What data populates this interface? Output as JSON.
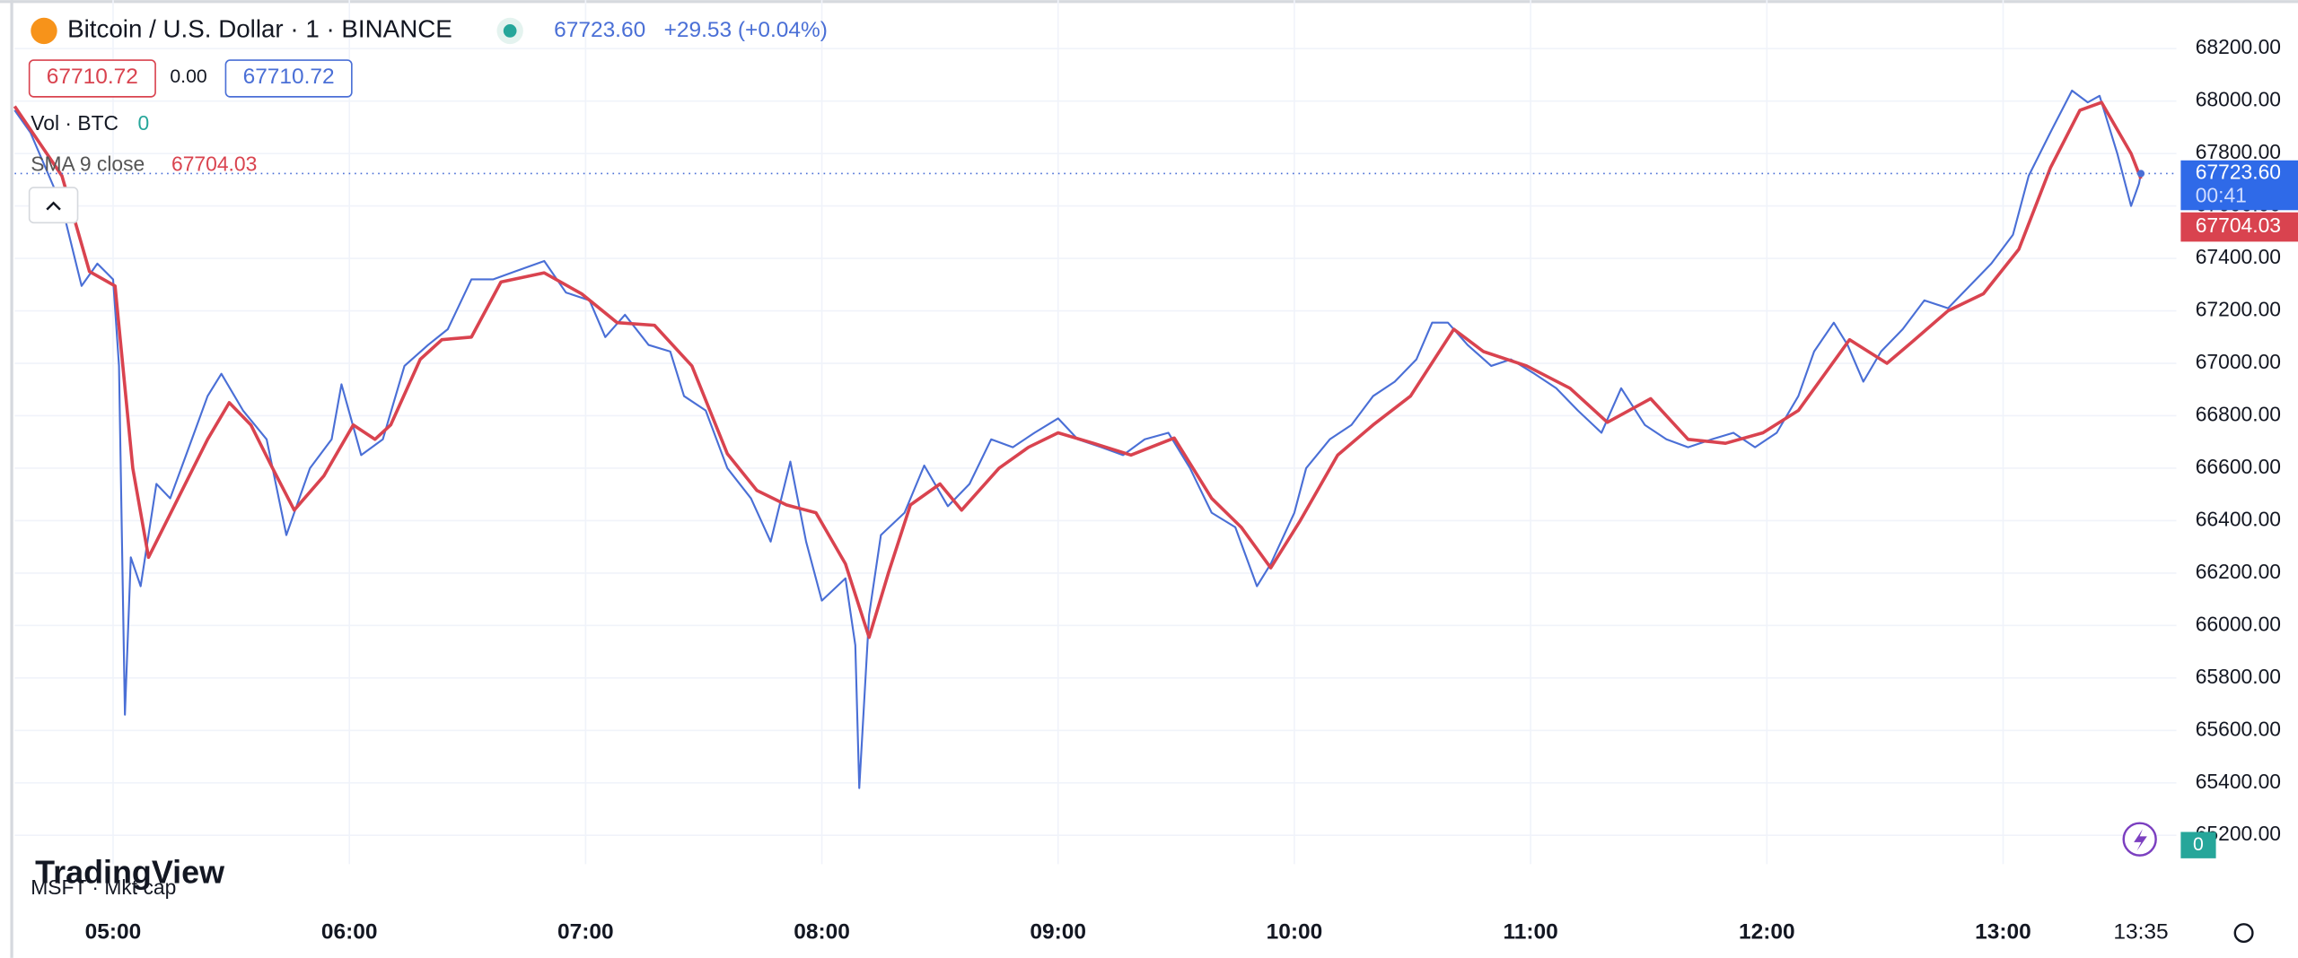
{
  "header": {
    "symbol": "Bitcoin / U.S. Dollar · 1 · BINANCE",
    "last": "67723.60",
    "change": "+29.53 (+0.04%)",
    "bid": "67710.72",
    "spread": "0.00",
    "ask": "67710.72"
  },
  "indicators": {
    "volume_label": "Vol · BTC",
    "volume_value": "0",
    "volume_axis_value": "0",
    "overlay_label": "MSFT · Mkt cap",
    "watermark": "TradingView"
  },
  "chart_data": {
    "type": "line",
    "grid": true,
    "xlim": [
      275,
      824
    ],
    "xticks": [
      {
        "value": 300,
        "label": "05:00"
      },
      {
        "value": 360,
        "label": "06:00"
      },
      {
        "value": 420,
        "label": "07:00"
      },
      {
        "value": 480,
        "label": "08:00"
      },
      {
        "value": 540,
        "label": "09:00"
      },
      {
        "value": 600,
        "label": "10:00"
      },
      {
        "value": 660,
        "label": "11:00"
      },
      {
        "value": 720,
        "label": "12:00"
      },
      {
        "value": 780,
        "label": "13:00"
      },
      {
        "value": 815,
        "label": "13:35"
      }
    ],
    "ylim": [
      65090,
      68385
    ],
    "yticks": [
      {
        "value": 65200,
        "label": "65200.00"
      },
      {
        "value": 65400,
        "label": "65400.00"
      },
      {
        "value": 65600,
        "label": "65600.00"
      },
      {
        "value": 65800,
        "label": "65800.00"
      },
      {
        "value": 66000,
        "label": "66000.00"
      },
      {
        "value": 66200,
        "label": "66200.00"
      },
      {
        "value": 66400,
        "label": "66400.00"
      },
      {
        "value": 66600,
        "label": "66600.00"
      },
      {
        "value": 66800,
        "label": "66800.00"
      },
      {
        "value": 67000,
        "label": "67000.00"
      },
      {
        "value": 67200,
        "label": "67200.00"
      },
      {
        "value": 67400,
        "label": "67400.00"
      },
      {
        "value": 67600,
        "label": "67600.00"
      },
      {
        "value": 67800,
        "label": "67800.00"
      },
      {
        "value": 68000,
        "label": "68000.00"
      },
      {
        "value": 68200,
        "label": "68200.00"
      }
    ],
    "last_price": {
      "value": 67723.6,
      "label": "67723.60"
    },
    "countdown": "00:41",
    "sma_last": {
      "value": 67704.03,
      "label": "67704.03"
    },
    "series": [
      {
        "color": "#4a6fd6",
        "x": [
          275,
          279,
          287,
          292,
          296,
          300,
          301.5,
          303,
          304.5,
          307,
          311,
          314.5,
          320,
          324,
          327.5,
          333,
          339,
          344,
          350,
          355.5,
          358,
          363,
          368.5,
          374,
          380,
          385,
          391,
          396.5,
          402,
          409.5,
          415,
          421,
          425,
          430,
          436,
          441.5,
          445,
          450.5,
          456,
          462,
          467,
          472,
          476,
          480,
          486,
          488.5,
          489.5,
          492,
          495,
          501,
          506,
          512,
          517.5,
          523,
          528.5,
          534,
          540,
          545,
          551,
          556.5,
          562,
          568,
          573.5,
          579,
          585,
          590.5,
          594,
          600,
          603,
          609,
          614.5,
          620,
          625.5,
          631,
          635,
          639,
          644,
          650,
          655,
          661,
          666.5,
          672,
          678,
          683,
          689,
          694.5,
          700,
          706,
          711.5,
          717,
          722.5,
          728,
          732,
          737,
          740.5,
          744.5,
          749,
          754.5,
          760,
          766,
          771.5,
          777,
          782.5,
          786.5,
          792,
          797.5,
          801.5,
          804.5,
          809,
          812.5,
          814.5,
          815
        ],
        "values": [
          67965,
          67880,
          67600,
          67295,
          67380,
          67320,
          66990,
          65660,
          66260,
          66150,
          66540,
          66485,
          66710,
          66875,
          66960,
          66820,
          66710,
          66345,
          66600,
          66710,
          66920,
          66650,
          66710,
          66990,
          67070,
          67130,
          67320,
          67320,
          67350,
          67390,
          67270,
          67240,
          67100,
          67185,
          67070,
          67045,
          66875,
          66820,
          66600,
          66485,
          66320,
          66625,
          66320,
          66095,
          66180,
          65925,
          65380,
          66040,
          66345,
          66430,
          66610,
          66455,
          66540,
          66710,
          66680,
          66735,
          66790,
          66710,
          66680,
          66650,
          66710,
          66735,
          66600,
          66430,
          66375,
          66150,
          66235,
          66430,
          66600,
          66710,
          66765,
          66875,
          66930,
          67015,
          67155,
          67155,
          67070,
          66990,
          67015,
          66960,
          66905,
          66820,
          66735,
          66905,
          66765,
          66710,
          66680,
          66710,
          66735,
          66680,
          66735,
          66875,
          67045,
          67155,
          67070,
          66930,
          67045,
          67130,
          67240,
          67210,
          67295,
          67380,
          67490,
          67715,
          67880,
          68040,
          67995,
          68020,
          67800,
          67600,
          67685,
          67723.6
        ]
      },
      {
        "name": "SMA 9 close",
        "color": "#d9434f",
        "x": [
          275,
          287,
          294,
          300.5,
          305,
          309,
          316.5,
          324,
          329.5,
          335,
          340.5,
          346,
          353.5,
          361,
          366.5,
          370.5,
          378,
          383.5,
          391,
          398.5,
          409.5,
          419,
          428,
          437.5,
          447,
          456,
          463.5,
          471,
          478.5,
          486,
          492,
          497,
          502.5,
          510,
          515.5,
          525,
          532.5,
          540,
          549,
          558.5,
          569.5,
          579,
          586.5,
          594,
          601.5,
          611,
          620,
          629.5,
          640.5,
          648,
          659,
          670,
          679.5,
          690.5,
          700,
          709.5,
          719,
          728,
          741,
          750.5,
          756,
          766,
          775,
          784,
          792,
          799.5,
          805,
          812.5,
          815
        ],
        "values": [
          67980,
          67715,
          67350,
          67295,
          66600,
          66260,
          66485,
          66710,
          66850,
          66765,
          66600,
          66440,
          66570,
          66765,
          66710,
          66765,
          67015,
          67090,
          67100,
          67310,
          67345,
          67265,
          67155,
          67145,
          66990,
          66655,
          66515,
          66460,
          66430,
          66235,
          65955,
          66205,
          66460,
          66540,
          66440,
          66600,
          66680,
          66735,
          66695,
          66650,
          66715,
          66485,
          66375,
          66220,
          66400,
          66650,
          66765,
          66875,
          67130,
          67045,
          66990,
          66905,
          66775,
          66865,
          66710,
          66695,
          66735,
          66820,
          67090,
          67000,
          67070,
          67200,
          67265,
          67435,
          67745,
          67965,
          67995,
          67800,
          67704.03
        ]
      }
    ]
  }
}
